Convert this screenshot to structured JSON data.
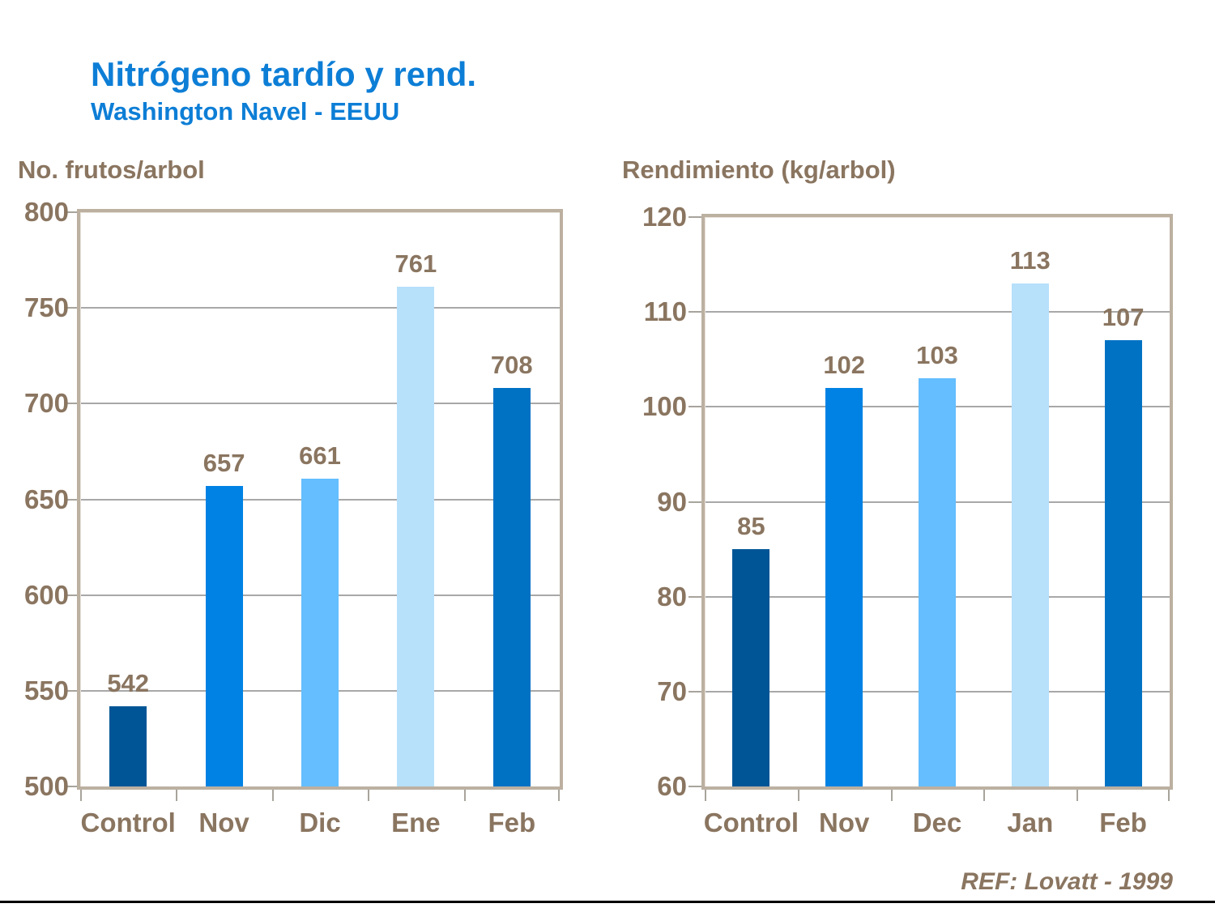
{
  "header": {
    "title": "Nitrógeno tardío y rend.",
    "subtitle": "Washington Navel - EEUU",
    "title_color": "#0d7ed6"
  },
  "footer": {
    "ref": "REF: Lovatt - 1999"
  },
  "palette": {
    "label_brown": "#8a7560",
    "plot_border_tan": "#bcb0a1",
    "gridline_gray": "#a8a8a8",
    "bar_control": "#005596",
    "bar_nov": "#0082e4",
    "bar_dec": "#64beff",
    "bar_jan": "#b7e0fb",
    "bar_feb": "#0072c4"
  },
  "chart_data": [
    {
      "type": "bar",
      "title": "No. frutos/arbol",
      "categories": [
        "Control",
        "Nov",
        "Dic",
        "Ene",
        "Feb"
      ],
      "values": [
        542,
        657,
        661,
        761,
        708
      ],
      "ylim": [
        500,
        800
      ],
      "yticks": [
        500,
        550,
        600,
        650,
        700,
        750,
        800
      ],
      "grid": true,
      "legend": "none",
      "value_labels": true,
      "bar_colors": [
        "#005596",
        "#0082e4",
        "#64beff",
        "#b7e0fb",
        "#0072c4"
      ]
    },
    {
      "type": "bar",
      "title": "Rendimiento (kg/arbol)",
      "categories": [
        "Control",
        "Nov",
        "Dec",
        "Jan",
        "Feb"
      ],
      "values": [
        85,
        102,
        103,
        113,
        107
      ],
      "ylim": [
        60,
        120
      ],
      "yticks": [
        60,
        70,
        80,
        90,
        100,
        110,
        120
      ],
      "grid": true,
      "legend": "none",
      "value_labels": true,
      "bar_colors": [
        "#005596",
        "#0082e4",
        "#64beff",
        "#b7e0fb",
        "#0072c4"
      ]
    }
  ]
}
